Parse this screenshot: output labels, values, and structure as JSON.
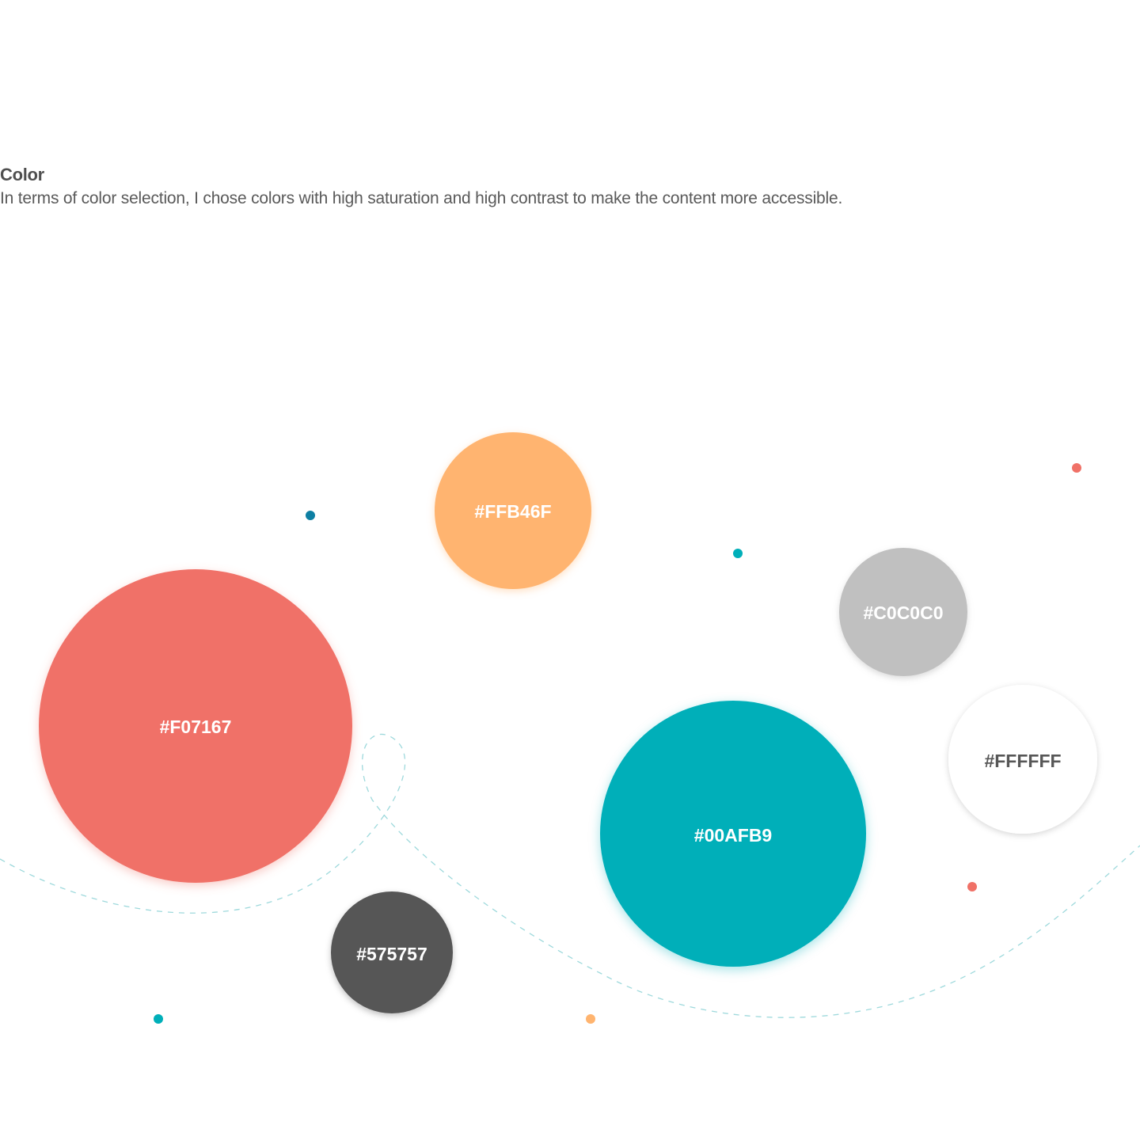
{
  "section": {
    "title": "Color",
    "description": "In terms of color selection, I chose colors with high saturation and high contrast to make the content more accessible."
  },
  "palette": [
    {
      "id": "coral",
      "label": "#F07167",
      "fill": "#F07167",
      "text_color": "#FFFFFF"
    },
    {
      "id": "orange",
      "label": "#FFB46F",
      "fill": "#FFB46F",
      "text_color": "#FFFFFF"
    },
    {
      "id": "silver",
      "label": "#C0C0C0",
      "fill": "#C0C0C0",
      "text_color": "#FFFFFF"
    },
    {
      "id": "white",
      "label": "#FFFFFF",
      "fill": "#FFFFFF",
      "text_color": "#575757"
    },
    {
      "id": "teal",
      "label": "#00AFB9",
      "fill": "#00AFB9",
      "text_color": "#FFFFFF"
    },
    {
      "id": "charcoal",
      "label": "#575757",
      "fill": "#575757",
      "text_color": "#FFFFFF"
    }
  ],
  "accent_dot_colors": [
    "#0E7FA3",
    "#00AFB9",
    "#F07167",
    "#FFB46F"
  ],
  "path_color": "#9ED9DC"
}
